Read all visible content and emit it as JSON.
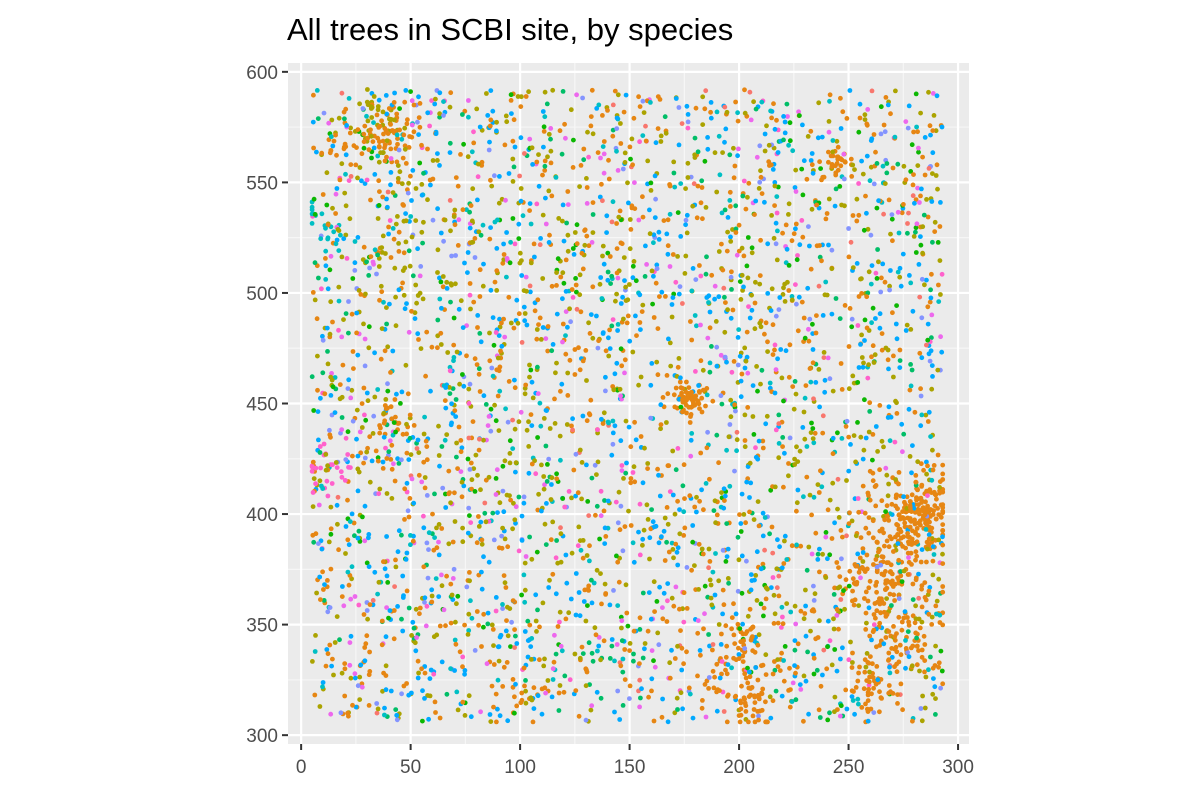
{
  "chart_data": {
    "type": "scatter",
    "title": "All trees in SCBI site, by species",
    "xlabel": "",
    "ylabel": "",
    "xlim": [
      -6,
      305
    ],
    "ylim": [
      296,
      604
    ],
    "x_ticks": [
      0,
      50,
      100,
      150,
      200,
      250,
      300
    ],
    "y_ticks": [
      300,
      350,
      400,
      450,
      500,
      550,
      600
    ],
    "x_tick_labels": [
      "0",
      "50",
      "100",
      "150",
      "200",
      "250",
      "300"
    ],
    "y_tick_labels": [
      "300",
      "350",
      "400",
      "450",
      "500",
      "550",
      "600"
    ],
    "grid": true,
    "legend": "none",
    "colors": {
      "panel_background": "#ebebeb",
      "grid_major": "#ffffff",
      "grid_minor": "#f7f7f7",
      "axis_text": "#4d4d4d",
      "tick": "#333333"
    },
    "series": [
      {
        "color": "#E68613",
        "weight": 0.25,
        "clusters": [
          [
            40,
            573,
            6,
            60
          ],
          [
            177,
            452,
            4,
            70
          ],
          [
            245,
            559,
            4,
            25
          ],
          [
            280,
            400,
            9,
            180
          ],
          [
            265,
            370,
            12,
            140
          ],
          [
            275,
            340,
            8,
            60
          ],
          [
            200,
            333,
            10,
            70
          ],
          [
            207,
            313,
            6,
            35
          ],
          [
            260,
            320,
            6,
            40
          ],
          [
            43,
            442,
            4,
            20
          ],
          [
            100,
            318,
            8,
            20
          ],
          [
            15,
            565,
            4,
            10
          ]
        ],
        "points": [
          [
            12,
            370
          ],
          [
            30,
            345
          ],
          [
            60,
            400
          ],
          [
            95,
            460
          ],
          [
            130,
            330
          ],
          [
            160,
            320
          ],
          [
            55,
            330
          ],
          [
            20,
            330
          ],
          [
            230,
            355
          ],
          [
            240,
            330
          ]
        ]
      },
      {
        "color": "#00A9FF",
        "weight": 0.22,
        "clusters": [],
        "points": []
      },
      {
        "color": "#ABA300",
        "weight": 0.22,
        "clusters": [
          [
            35,
            575,
            8,
            30
          ],
          [
            45,
            520,
            15,
            40
          ],
          [
            90,
            420,
            20,
            40
          ]
        ],
        "points": []
      },
      {
        "color": "#0CB702",
        "weight": 0.06,
        "clusters": [],
        "points": []
      },
      {
        "color": "#00BE67",
        "weight": 0.06,
        "clusters": [],
        "points": []
      },
      {
        "color": "#00BFC4",
        "weight": 0.06,
        "clusters": [
          [
            10,
            530,
            6,
            20
          ]
        ],
        "points": []
      },
      {
        "color": "#8494FF",
        "weight": 0.05,
        "clusters": [],
        "points": []
      },
      {
        "color": "#ED68ED",
        "weight": 0.05,
        "clusters": [],
        "points": []
      },
      {
        "color": "#FF61CC",
        "weight": 0.03,
        "clusters": [
          [
            12,
            420,
            6,
            25
          ]
        ],
        "points": []
      },
      {
        "color": "#F8766D",
        "weight": 0.02,
        "clusters": [],
        "points": []
      }
    ],
    "scatter_domain": {
      "x": [
        5,
        293
      ],
      "y": [
        306,
        592
      ]
    },
    "background_point_count": 3400
  }
}
